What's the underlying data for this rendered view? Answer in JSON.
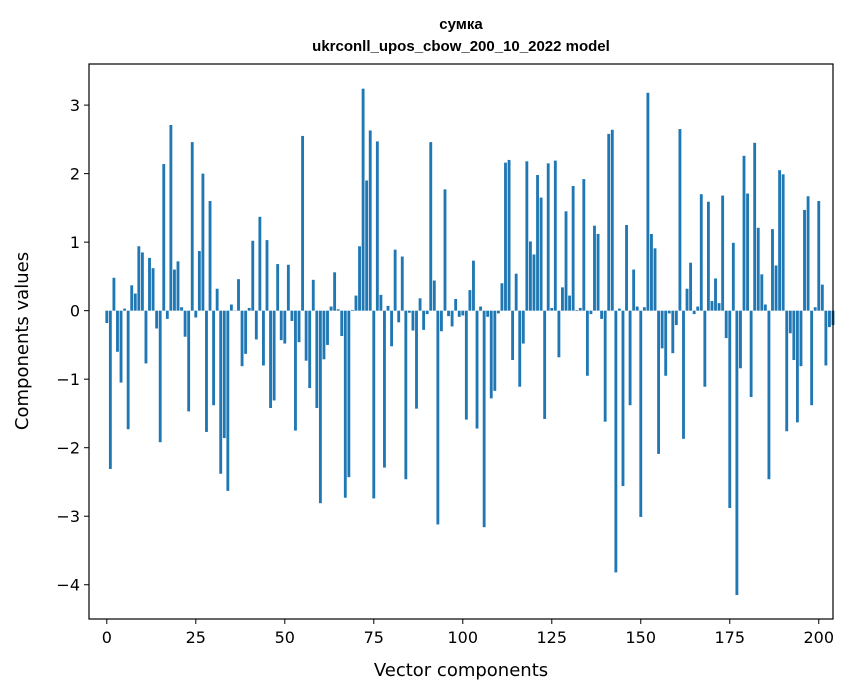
{
  "chart_data": {
    "type": "bar",
    "title": "сумка",
    "subtitle": "ukrconll_upos_cbow_200_10_2022 model",
    "xlabel": "Vector components",
    "ylabel": "Components values",
    "xlim": [
      -5,
      204
    ],
    "ylim": [
      -4.5,
      3.6
    ],
    "xticks": [
      0,
      25,
      50,
      75,
      100,
      125,
      150,
      175,
      200
    ],
    "yticks": [
      -4,
      -3,
      -2,
      -1,
      0,
      1,
      2,
      3
    ],
    "xtick_labels": [
      "0",
      "25",
      "50",
      "75",
      "100",
      "125",
      "150",
      "175",
      "200"
    ],
    "ytick_labels": [
      "−4",
      "−3",
      "−2",
      "−1",
      "0",
      "1",
      "2",
      "3"
    ],
    "grid": false,
    "bar_color": "#1f77b4",
    "x_start": 0,
    "values": [
      -0.18,
      -2.31,
      0.48,
      -0.6,
      -1.05,
      0.03,
      -1.73,
      0.37,
      0.25,
      0.94,
      0.85,
      -0.77,
      0.77,
      0.62,
      -0.26,
      -1.92,
      2.14,
      -0.12,
      2.71,
      0.6,
      0.72,
      0.05,
      -0.38,
      -1.47,
      2.46,
      -0.1,
      0.87,
      2.0,
      -1.77,
      1.6,
      -1.38,
      0.32,
      -2.38,
      -1.86,
      -2.63,
      0.09,
      0.0,
      0.46,
      -0.81,
      -0.63,
      0.04,
      1.02,
      -0.42,
      1.37,
      -0.8,
      1.03,
      -1.42,
      -1.31,
      0.68,
      -0.43,
      -0.48,
      0.67,
      -0.15,
      -1.75,
      -0.46,
      2.55,
      -0.73,
      -1.13,
      0.45,
      -1.42,
      -2.81,
      -0.71,
      -0.5,
      0.06,
      0.56,
      0.02,
      -0.37,
      -2.73,
      -2.43,
      0.01,
      0.22,
      0.94,
      3.24,
      1.9,
      2.63,
      -2.74,
      2.47,
      0.23,
      -2.29,
      0.07,
      -0.52,
      0.89,
      -0.17,
      0.79,
      -2.46,
      -0.03,
      -0.29,
      -1.43,
      0.18,
      -0.28,
      -0.05,
      2.46,
      0.44,
      -3.12,
      -0.3,
      1.77,
      -0.08,
      -0.23,
      0.17,
      -0.09,
      -0.07,
      -1.59,
      0.3,
      0.73,
      -1.72,
      0.06,
      -3.16,
      -0.09,
      -1.28,
      -1.17,
      -0.04,
      0.4,
      2.16,
      2.2,
      -0.72,
      0.54,
      -1.11,
      -0.48,
      2.18,
      1.01,
      0.82,
      1.98,
      1.65,
      -1.58,
      2.15,
      0.04,
      2.19,
      -0.68,
      0.34,
      1.45,
      0.22,
      1.82,
      0.01,
      0.04,
      1.92,
      -0.95,
      -0.05,
      1.24,
      1.12,
      -0.12,
      -1.62,
      2.58,
      2.64,
      -3.82,
      0.03,
      -2.56,
      1.25,
      -1.38,
      0.6,
      0.06,
      -3.01,
      0.05,
      3.18,
      1.12,
      0.91,
      -2.09,
      -0.55,
      -0.95,
      -0.04,
      -0.62,
      -0.21,
      2.65,
      -1.87,
      0.32,
      0.7,
      -0.05,
      0.06,
      1.7,
      -1.11,
      1.59,
      0.14,
      0.47,
      0.11,
      1.68,
      -0.4,
      -2.88,
      0.99,
      -4.15,
      -0.84,
      2.26,
      1.71,
      -1.26,
      2.45,
      1.21,
      0.53,
      0.09,
      -2.46,
      1.19,
      0.66,
      2.05,
      1.99,
      -1.76,
      -0.33,
      -0.72,
      -1.63,
      -0.81,
      1.47,
      1.67,
      -1.38,
      0.05,
      1.6,
      0.38,
      -0.8,
      -0.24,
      -0.21
    ]
  }
}
